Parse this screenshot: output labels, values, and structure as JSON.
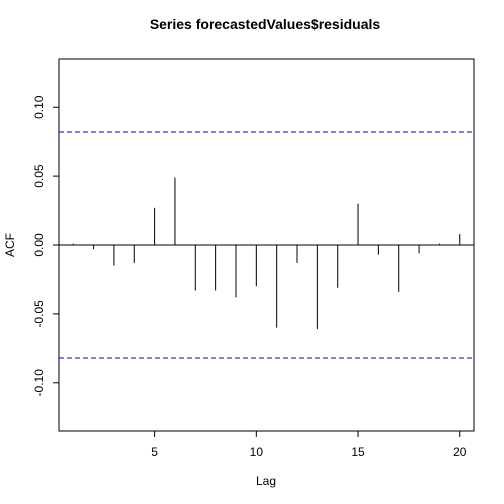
{
  "chart_data": {
    "type": "bar",
    "title": "Series  forecastedValues$residuals",
    "xlabel": "Lag",
    "ylabel": "ACF",
    "xlim": [
      0.3,
      20.7
    ],
    "ylim": [
      -0.135,
      0.135
    ],
    "x_ticks": [
      5,
      10,
      15,
      20
    ],
    "y_ticks": [
      -0.1,
      -0.05,
      0.0,
      0.05,
      0.1
    ],
    "y_tick_labels": [
      "-0.10",
      "-0.05",
      "0.00",
      "0.05",
      "0.10"
    ],
    "lags": [
      1,
      2,
      3,
      4,
      5,
      6,
      7,
      8,
      9,
      10,
      11,
      12,
      13,
      14,
      15,
      16,
      17,
      18,
      19,
      20
    ],
    "values": [
      0.001,
      -0.003,
      -0.015,
      -0.013,
      0.027,
      0.049,
      -0.033,
      -0.033,
      -0.038,
      -0.03,
      -0.06,
      -0.013,
      -0.061,
      -0.031,
      0.03,
      -0.007,
      -0.034,
      -0.006,
      0.001,
      0.008
    ],
    "confidence_bounds": [
      -0.082,
      0.082
    ],
    "grid": false,
    "colors": {
      "bars": "#000000",
      "confidence": "#0000CC",
      "zero_line": "#000000"
    }
  }
}
